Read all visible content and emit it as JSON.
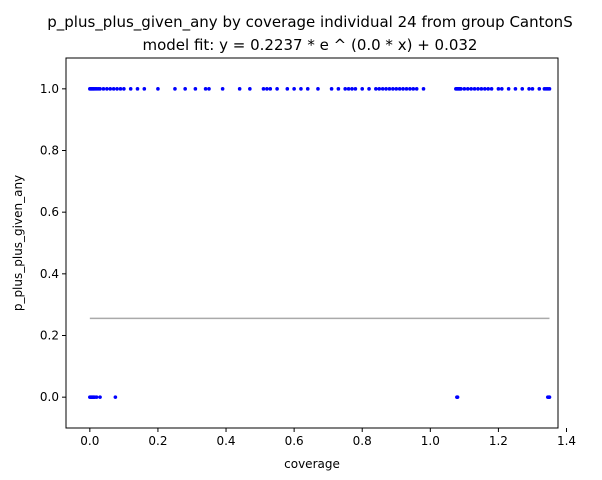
{
  "chart_data": {
    "type": "scatter",
    "title": "p_plus_plus_given_any by coverage individual 24 from group CantonS",
    "subtitle": "model fit: y = 0.2237 * e ^ (0.0 * x) + 0.032",
    "xlabel": "coverage",
    "ylabel": "p_plus_plus_given_any",
    "xlim": [
      -0.07,
      1.375
    ],
    "ylim": [
      -0.1,
      1.1
    ],
    "x_ticks": [
      0.0,
      0.2,
      0.4,
      0.6,
      0.8,
      1.0,
      1.2,
      1.4
    ],
    "x_tick_labels": [
      "0.0",
      "0.2",
      "0.4",
      "0.6",
      "0.8",
      "1.0",
      "1.2",
      "1.4"
    ],
    "y_ticks": [
      0.0,
      0.2,
      0.4,
      0.6,
      0.8,
      1.0
    ],
    "y_tick_labels": [
      "0.0",
      "0.2",
      "0.4",
      "0.6",
      "0.8",
      "1.0"
    ],
    "grid": false,
    "point_color": "#0000ff",
    "fit_color": "#aaaaaa",
    "series": [
      {
        "x": [
          0.0,
          0.003,
          0.006,
          0.009,
          0.012,
          0.016,
          0.02,
          0.025,
          0.03,
          0.04,
          0.05,
          0.06,
          0.07,
          0.08,
          0.09,
          0.1,
          0.12,
          0.14,
          0.16,
          0.2,
          0.25,
          0.28,
          0.31,
          0.34,
          0.35,
          0.39,
          0.44,
          0.47,
          0.51,
          0.52,
          0.53,
          0.55,
          0.58,
          0.6,
          0.62,
          0.64,
          0.67,
          0.71,
          0.73,
          0.75,
          0.76,
          0.77,
          0.78,
          0.8,
          0.82,
          0.84,
          0.85,
          0.86,
          0.87,
          0.88,
          0.89,
          0.9,
          0.91,
          0.92,
          0.93,
          0.94,
          0.95,
          0.96,
          0.98,
          1.075,
          1.078,
          1.081,
          1.084,
          1.087,
          1.09,
          1.1,
          1.11,
          1.12,
          1.13,
          1.14,
          1.15,
          1.16,
          1.17,
          1.18,
          1.2,
          1.21,
          1.23,
          1.25,
          1.27,
          1.29,
          1.3,
          1.32,
          1.335,
          1.34,
          1.345,
          1.35
        ],
        "y": [
          1,
          1,
          1,
          1,
          1,
          1,
          1,
          1,
          1,
          1,
          1,
          1,
          1,
          1,
          1,
          1,
          1,
          1,
          1,
          1,
          1,
          1,
          1,
          1,
          1,
          1,
          1,
          1,
          1,
          1,
          1,
          1,
          1,
          1,
          1,
          1,
          1,
          1,
          1,
          1,
          1,
          1,
          1,
          1,
          1,
          1,
          1,
          1,
          1,
          1,
          1,
          1,
          1,
          1,
          1,
          1,
          1,
          1,
          1,
          1,
          1,
          1,
          1,
          1,
          1,
          1,
          1,
          1,
          1,
          1,
          1,
          1,
          1,
          1,
          1,
          1,
          1,
          1,
          1,
          1,
          1,
          1,
          1,
          1,
          1,
          1
        ]
      },
      {
        "x": [
          0.0,
          0.002,
          0.004,
          0.006,
          0.008,
          0.01,
          0.012,
          0.015,
          0.02,
          0.03,
          0.075,
          1.078,
          1.079,
          1.08,
          1.345,
          1.347,
          1.349,
          1.35
        ],
        "y": [
          0,
          0,
          0,
          0,
          0,
          0,
          0,
          0,
          0,
          0,
          0,
          0,
          0,
          0,
          0,
          0,
          0,
          0
        ]
      }
    ],
    "fit": {
      "a": 0.2237,
      "b": 0.0,
      "c": 0.032,
      "x_range": [
        0.0,
        1.35
      ]
    }
  }
}
